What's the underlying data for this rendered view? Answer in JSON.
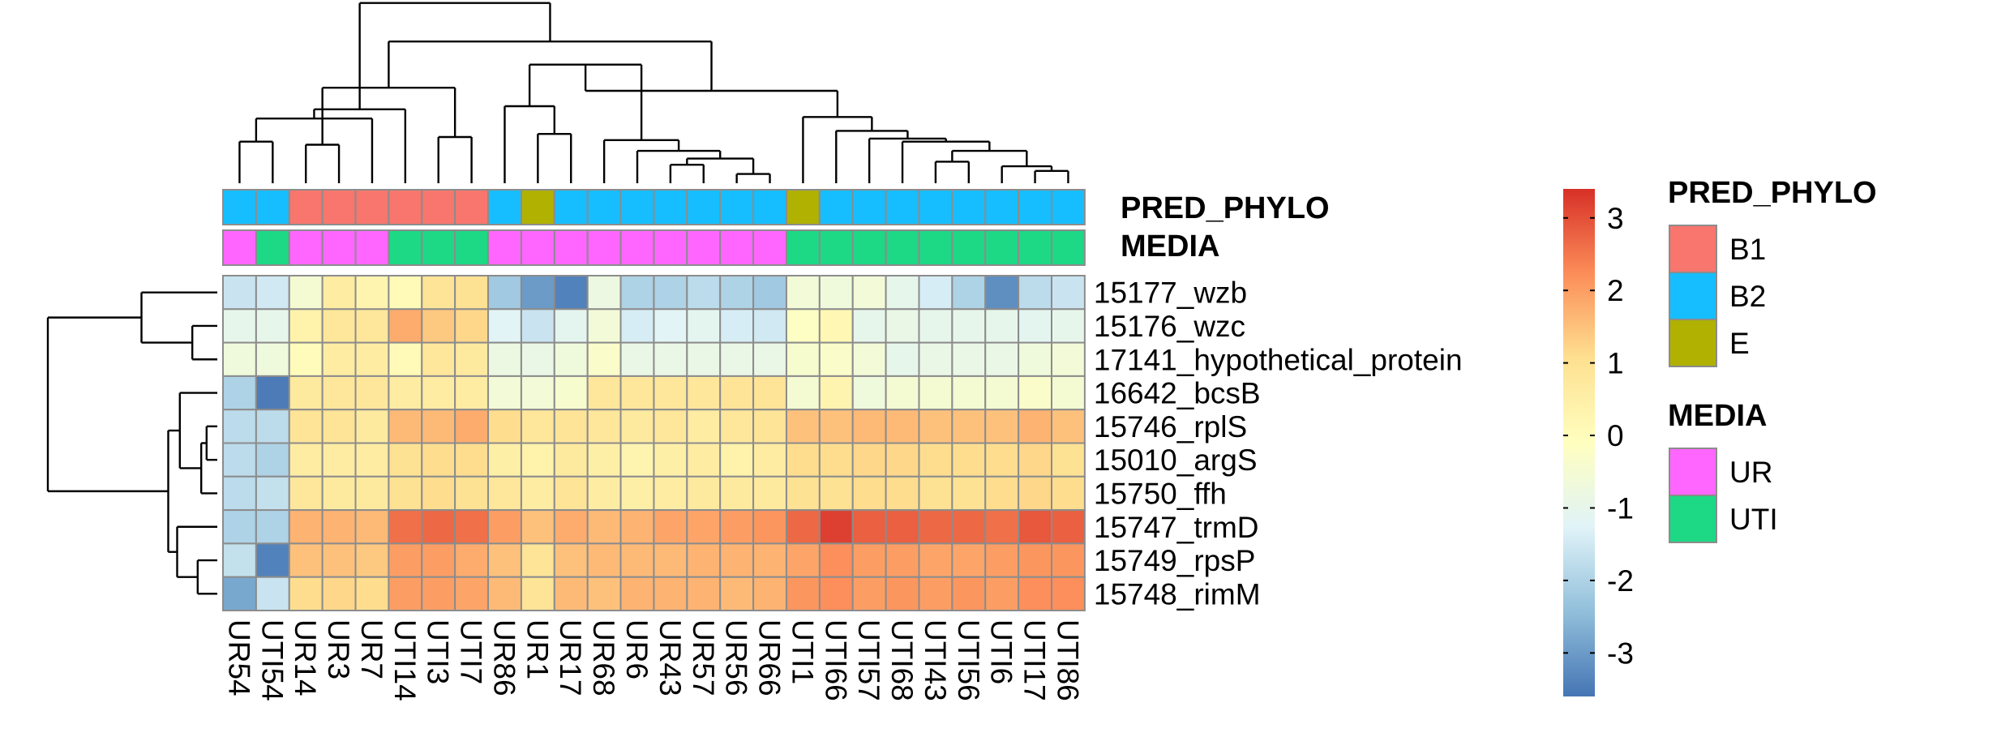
{
  "chart_data": {
    "type": "heatmap",
    "title": "",
    "columns": [
      "UR54",
      "UTI54",
      "UR14",
      "UR3",
      "UR7",
      "UTI14",
      "UTI3",
      "UTI7",
      "UR86",
      "UR1",
      "UR17",
      "UR68",
      "UR6",
      "UR43",
      "UR57",
      "UR56",
      "UR66",
      "UTI1",
      "UTI66",
      "UTI57",
      "UTI68",
      "UTI43",
      "UTI56",
      "UTI6",
      "UTI17",
      "UTI86"
    ],
    "rows": [
      "15177_wzb",
      "15176_wzc",
      "17141_hypothetical_protein",
      "16642_bcsB",
      "15746_rplS",
      "15010_argS",
      "15750_ffh",
      "15747_trmD",
      "15749_rpsP",
      "15748_rimM"
    ],
    "values": [
      [
        -1.6,
        -1.5,
        -0.5,
        0.6,
        0.3,
        0.1,
        0.9,
        1.0,
        -2.2,
        -3.0,
        -3.4,
        -0.8,
        -2.0,
        -2.0,
        -1.8,
        -2.0,
        -2.2,
        -0.6,
        -0.7,
        -0.6,
        -1.0,
        -1.4,
        -2.0,
        -3.2,
        -1.8,
        -1.6
      ],
      [
        -1.0,
        -1.0,
        0.4,
        0.8,
        0.8,
        1.8,
        1.4,
        1.2,
        -1.2,
        -1.6,
        -1.1,
        -0.6,
        -1.4,
        -1.2,
        -1.1,
        -1.4,
        -1.5,
        -0.2,
        0.2,
        -1.0,
        -0.9,
        -1.0,
        -1.0,
        -1.0,
        -1.1,
        -1.0
      ],
      [
        -0.7,
        -0.7,
        0.0,
        0.6,
        0.6,
        0.1,
        0.8,
        0.7,
        -0.8,
        -0.9,
        -0.7,
        -0.3,
        -0.9,
        -0.9,
        -0.9,
        -0.9,
        -0.9,
        -0.4,
        -0.3,
        -0.6,
        -1.0,
        -0.9,
        -0.9,
        -0.9,
        -0.7,
        -0.6
      ],
      [
        -2.0,
        -3.5,
        0.7,
        0.8,
        0.8,
        0.6,
        0.6,
        0.6,
        -0.6,
        -0.6,
        -0.4,
        0.8,
        0.8,
        0.8,
        0.8,
        0.9,
        0.9,
        -0.5,
        0.3,
        -0.7,
        -0.5,
        -0.5,
        -0.5,
        -0.5,
        -0.3,
        -0.5
      ],
      [
        -1.8,
        -1.8,
        0.9,
        0.9,
        0.7,
        1.6,
        1.6,
        1.8,
        1.1,
        0.8,
        0.9,
        0.8,
        0.7,
        0.8,
        0.6,
        0.8,
        0.9,
        1.5,
        1.5,
        1.6,
        1.6,
        1.5,
        1.5,
        1.5,
        1.7,
        1.5
      ],
      [
        -1.8,
        -2.0,
        0.6,
        0.6,
        0.6,
        1.0,
        1.1,
        1.1,
        0.5,
        0.4,
        0.7,
        0.5,
        0.3,
        0.5,
        0.6,
        0.4,
        0.6,
        1.1,
        1.1,
        1.2,
        1.2,
        1.1,
        1.1,
        1.1,
        1.2,
        1.0
      ],
      [
        -1.8,
        -1.7,
        0.8,
        0.7,
        0.7,
        1.0,
        1.1,
        1.0,
        0.8,
        0.6,
        0.9,
        0.6,
        0.5,
        0.6,
        0.7,
        0.7,
        0.7,
        1.0,
        1.0,
        1.1,
        1.1,
        1.0,
        1.0,
        1.1,
        1.2,
        1.1
      ],
      [
        -2.0,
        -2.0,
        1.7,
        1.7,
        1.6,
        2.6,
        2.7,
        2.6,
        2.0,
        1.5,
        1.8,
        1.6,
        1.7,
        1.9,
        1.9,
        2.0,
        2.1,
        2.7,
        3.2,
        2.8,
        2.8,
        2.7,
        2.7,
        2.6,
        2.9,
        2.8
      ],
      [
        -1.7,
        -3.4,
        1.5,
        1.5,
        1.4,
        2.0,
        2.0,
        1.8,
        1.5,
        0.9,
        1.5,
        1.6,
        1.6,
        1.6,
        1.7,
        1.7,
        1.7,
        1.9,
        2.2,
        2.0,
        2.0,
        1.9,
        1.9,
        2.0,
        2.1,
        2.1
      ],
      [
        -2.8,
        -1.6,
        1.1,
        1.2,
        1.1,
        2.0,
        2.0,
        1.9,
        1.6,
        0.9,
        1.6,
        1.5,
        1.7,
        1.7,
        1.7,
        1.6,
        1.7,
        2.1,
        2.2,
        2.0,
        2.1,
        2.0,
        2.1,
        2.0,
        2.2,
        2.2
      ]
    ],
    "annotations": {
      "PRED_PHYLO": [
        "B2",
        "B2",
        "B1",
        "B1",
        "B1",
        "B1",
        "B1",
        "B1",
        "B2",
        "E",
        "B2",
        "B2",
        "B2",
        "B2",
        "B2",
        "B2",
        "B2",
        "E",
        "B2",
        "B2",
        "B2",
        "B2",
        "B2",
        "B2",
        "B2",
        "B2"
      ],
      "MEDIA": [
        "UR",
        "UTI",
        "UR",
        "UR",
        "UR",
        "UTI",
        "UTI",
        "UTI",
        "UR",
        "UR",
        "UR",
        "UR",
        "UR",
        "UR",
        "UR",
        "UR",
        "UR",
        "UTI",
        "UTI",
        "UTI",
        "UTI",
        "UTI",
        "UTI",
        "UTI",
        "UTI",
        "UTI"
      ]
    },
    "annotation_labels": [
      "PRED_PHYLO",
      "MEDIA"
    ],
    "colorbar": {
      "range": [
        -3.6,
        3.4
      ],
      "ticks": [
        3,
        2,
        1,
        0,
        -1,
        -2,
        -3
      ],
      "tick_labels": [
        "3",
        "2",
        "1",
        "0",
        "-1",
        "-2",
        "-3"
      ],
      "colors": [
        "#4575B4",
        "#91BFDB",
        "#E0F3F8",
        "#FFFFBF",
        "#FEE090",
        "#FC8D59",
        "#D73027"
      ]
    },
    "legend": [
      {
        "title": "PRED_PHYLO",
        "items": [
          {
            "label": "B1",
            "color": "#F8766D"
          },
          {
            "label": "B2",
            "color": "#16BEFF"
          },
          {
            "label": "E",
            "color": "#B0B100"
          }
        ]
      },
      {
        "title": "MEDIA",
        "items": [
          {
            "label": "UR",
            "color": "#FF66FF"
          },
          {
            "label": "UTI",
            "color": "#1DD884"
          }
        ]
      }
    ],
    "column_dendrogram": [
      [
        0,
        1
      ],
      [
        2,
        3
      ],
      [
        26,
        4
      ],
      [
        6,
        7
      ],
      [
        5,
        28
      ],
      [
        27,
        29
      ],
      [
        9,
        10
      ],
      [
        8,
        32
      ],
      [
        13,
        14
      ],
      [
        15,
        16
      ],
      [
        34,
        35
      ],
      [
        12,
        36
      ],
      [
        11,
        37
      ],
      [
        33,
        38
      ],
      [
        24,
        25
      ],
      [
        23,
        40
      ],
      [
        21,
        22
      ],
      [
        41,
        42
      ],
      [
        20,
        43
      ],
      [
        19,
        44
      ],
      [
        18,
        45
      ],
      [
        17,
        46
      ],
      [
        39,
        47
      ],
      [
        31,
        48
      ],
      [
        30,
        49
      ]
    ],
    "row_dendrogram": [
      [
        1,
        2
      ],
      [
        0,
        10
      ],
      [
        4,
        5
      ],
      [
        12,
        6
      ],
      [
        3,
        13
      ],
      [
        8,
        9
      ],
      [
        7,
        15
      ],
      [
        14,
        16
      ],
      [
        11,
        17
      ]
    ]
  }
}
